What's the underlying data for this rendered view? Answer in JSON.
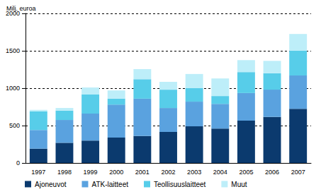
{
  "chart_data": {
    "type": "bar",
    "stacked": true,
    "ylabel": "Milj. euroa",
    "categories": [
      "1997",
      "1998",
      "1999",
      "2000",
      "2001",
      "2002",
      "2003",
      "2004",
      "2005",
      "2006",
      "2007"
    ],
    "series": [
      {
        "name": "Ajoneuvot",
        "color": "#0b3a6e",
        "values": [
          190,
          270,
          300,
          340,
          360,
          415,
          490,
          460,
          565,
          615,
          725
        ]
      },
      {
        "name": "ATK-laitteet",
        "color": "#5aa2df",
        "values": [
          250,
          305,
          360,
          440,
          500,
          320,
          330,
          330,
          370,
          365,
          445
        ]
      },
      {
        "name": "Teollisuuslaitteet",
        "color": "#57cde9",
        "values": [
          250,
          125,
          255,
          80,
          260,
          245,
          180,
          105,
          280,
          220,
          330
        ]
      },
      {
        "name": "Muut",
        "color": "#bdeef9",
        "values": [
          20,
          35,
          95,
          110,
          135,
          105,
          190,
          235,
          160,
          165,
          225
        ]
      }
    ],
    "ylim": [
      0,
      2000
    ],
    "yticks": [
      0,
      500,
      1000,
      1500,
      2000
    ],
    "grid": true,
    "legend": "bottom"
  }
}
